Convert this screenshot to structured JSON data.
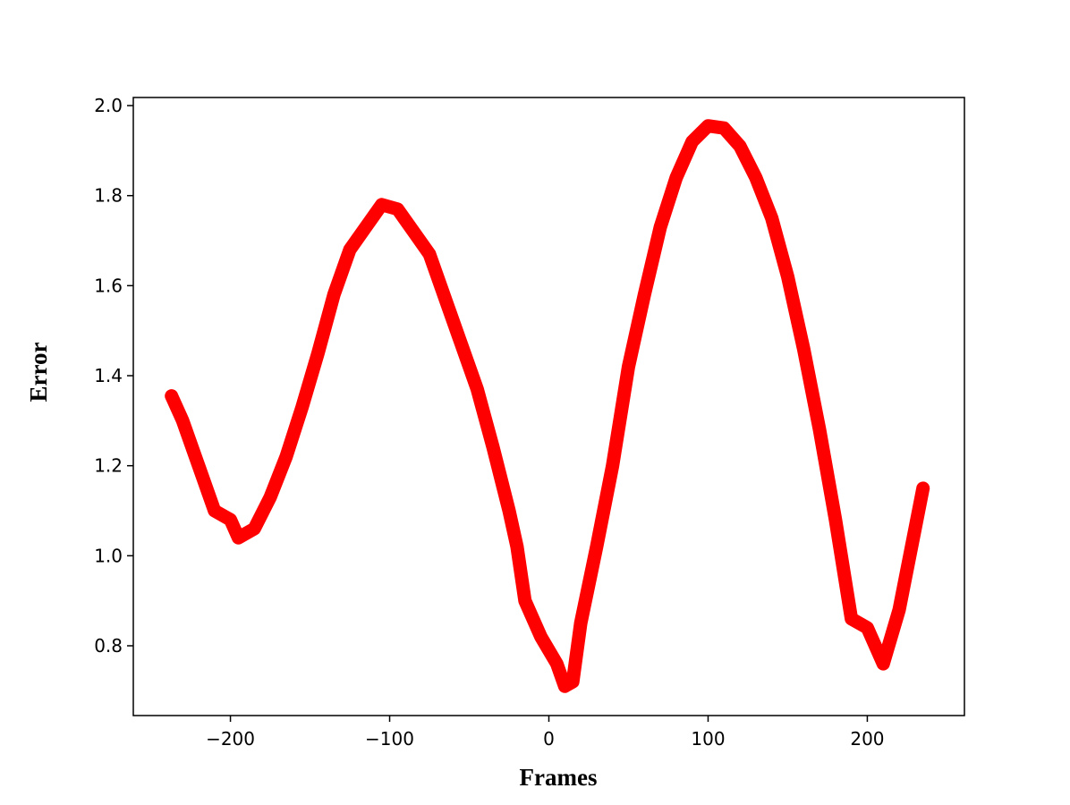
{
  "chart_data": {
    "type": "line",
    "x_label": "Frames",
    "y_label": "Error",
    "x": [
      -237,
      -230,
      -220,
      -210,
      -200,
      -195,
      -185,
      -175,
      -165,
      -155,
      -145,
      -135,
      -125,
      -115,
      -105,
      -95,
      -85,
      -75,
      -65,
      -55,
      -45,
      -35,
      -25,
      -20,
      -15,
      -5,
      5,
      10,
      15,
      20,
      30,
      40,
      50,
      60,
      70,
      80,
      90,
      100,
      110,
      120,
      130,
      140,
      150,
      160,
      170,
      180,
      190,
      200,
      210,
      220,
      230,
      235
    ],
    "series": [
      {
        "name": "Error",
        "color": "#ff0000",
        "values": [
          1.355,
          1.3,
          1.2,
          1.1,
          1.08,
          1.04,
          1.06,
          1.13,
          1.22,
          1.33,
          1.45,
          1.58,
          1.68,
          1.73,
          1.78,
          1.77,
          1.72,
          1.67,
          1.57,
          1.47,
          1.37,
          1.24,
          1.1,
          1.02,
          0.9,
          0.82,
          0.76,
          0.71,
          0.72,
          0.85,
          1.02,
          1.2,
          1.42,
          1.58,
          1.73,
          1.84,
          1.92,
          1.955,
          1.95,
          1.91,
          1.84,
          1.75,
          1.62,
          1.46,
          1.28,
          1.08,
          0.86,
          0.84,
          0.76,
          0.88,
          1.06,
          1.15
        ]
      }
    ],
    "xlim": [
      -261,
      261
    ],
    "xticks": [
      {
        "value": -200,
        "label": "−200"
      },
      {
        "value": -100,
        "label": "−100"
      },
      0,
      100,
      200
    ],
    "ylim": [
      0.645,
      2.018
    ],
    "yticks": [
      0.8,
      {
        "value": 1.0,
        "label": "1.0"
      },
      1.2,
      1.4,
      1.6,
      1.8,
      {
        "value": 2.0,
        "label": "2.0"
      }
    ],
    "grid": false
  }
}
